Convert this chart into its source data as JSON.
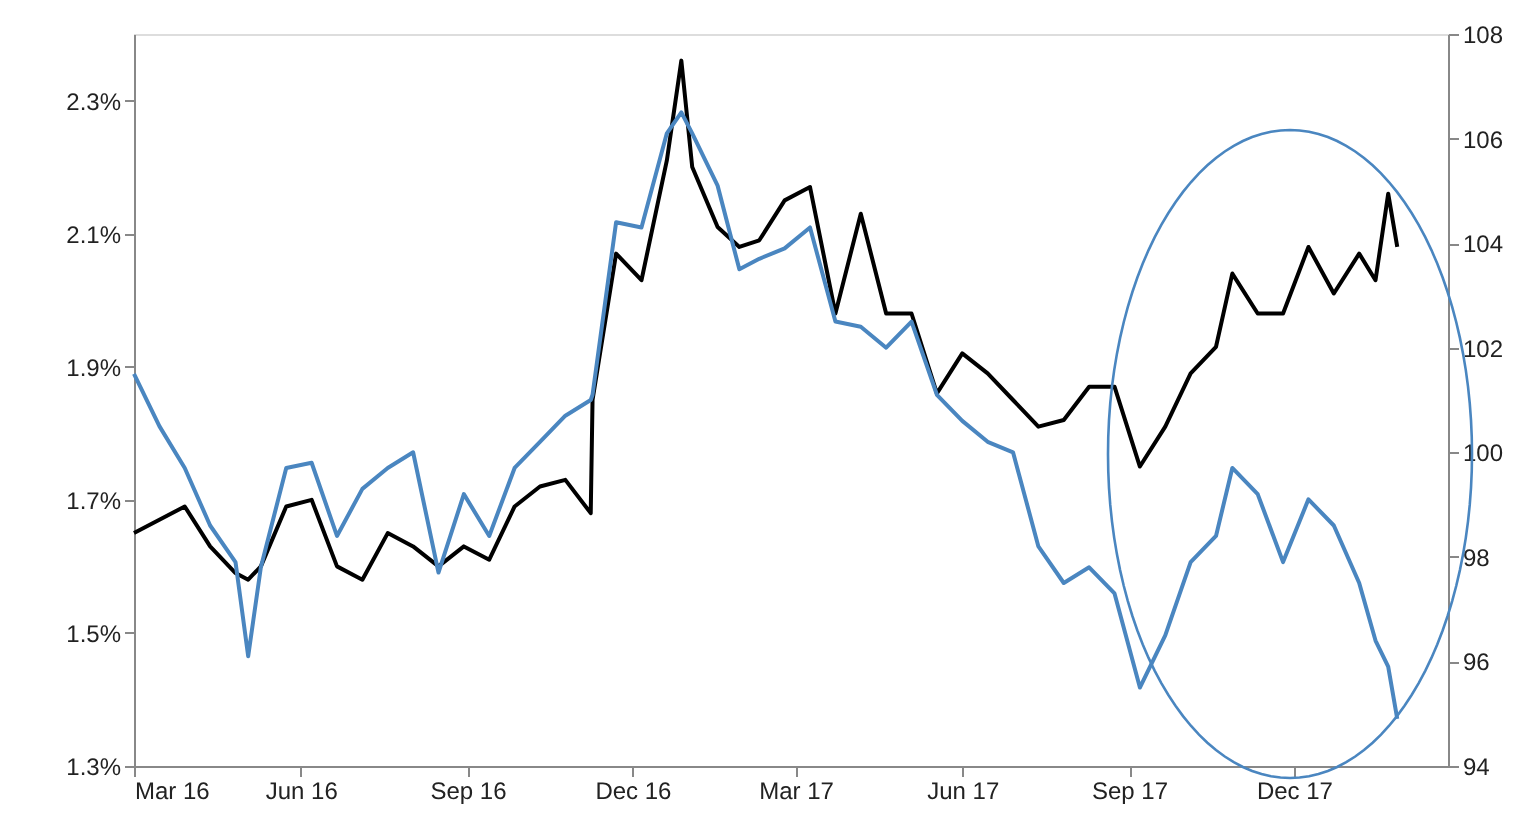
{
  "chart_data": {
    "type": "line",
    "x": [
      "2016-03-01",
      "2016-03-15",
      "2016-03-29",
      "2016-04-12",
      "2016-04-26",
      "2016-05-03",
      "2016-05-10",
      "2016-05-24",
      "2016-06-07",
      "2016-06-21",
      "2016-07-05",
      "2016-07-19",
      "2016-08-02",
      "2016-08-16",
      "2016-08-30",
      "2016-09-13",
      "2016-09-27",
      "2016-10-11",
      "2016-10-25",
      "2016-11-08",
      "2016-11-09",
      "2016-11-22",
      "2016-12-06",
      "2016-12-20",
      "2016-12-28",
      "2017-01-03",
      "2017-01-17",
      "2017-01-29",
      "2017-02-09",
      "2017-02-23",
      "2017-03-09",
      "2017-03-23",
      "2017-04-06",
      "2017-04-20",
      "2017-05-04",
      "2017-05-18",
      "2017-06-01",
      "2017-06-15",
      "2017-06-29",
      "2017-07-13",
      "2017-07-27",
      "2017-08-10",
      "2017-08-24",
      "2017-09-07",
      "2017-09-21",
      "2017-10-05",
      "2017-10-19",
      "2017-10-28",
      "2017-11-11",
      "2017-11-25",
      "2017-12-09",
      "2017-12-23",
      "2018-01-06",
      "2018-01-15",
      "2018-01-22",
      "2018-01-27"
    ],
    "series": [
      {
        "color": "#000000",
        "axis": "y",
        "values": [
          1.65,
          1.67,
          1.69,
          1.63,
          1.59,
          1.58,
          1.6,
          1.69,
          1.7,
          1.6,
          1.58,
          1.65,
          1.63,
          1.6,
          1.63,
          1.61,
          1.69,
          1.72,
          1.73,
          1.68,
          1.85,
          2.07,
          2.03,
          2.21,
          2.36,
          2.2,
          2.11,
          2.08,
          2.09,
          2.15,
          2.17,
          1.98,
          2.13,
          1.98,
          1.98,
          1.86,
          1.92,
          1.89,
          1.85,
          1.81,
          1.82,
          1.87,
          1.87,
          1.75,
          1.81,
          1.89,
          1.93,
          2.04,
          1.98,
          1.98,
          2.08,
          2.01,
          2.07,
          2.03,
          2.16,
          2.08
        ]
      },
      {
        "color": "#4a86c0",
        "axis": "y2",
        "values": [
          101.5,
          100.5,
          99.7,
          98.6,
          97.9,
          96.1,
          97.8,
          99.7,
          99.8,
          98.4,
          99.3,
          99.7,
          100.0,
          97.7,
          99.2,
          98.4,
          99.7,
          100.2,
          100.7,
          101.0,
          101.1,
          104.4,
          104.3,
          106.1,
          106.5,
          106.1,
          105.1,
          103.5,
          103.7,
          103.9,
          104.3,
          102.5,
          102.4,
          102.0,
          102.5,
          101.1,
          100.6,
          100.2,
          100.0,
          98.2,
          97.5,
          97.8,
          97.3,
          95.5,
          96.5,
          97.9,
          98.4,
          99.7,
          99.2,
          97.9,
          99.1,
          98.6,
          97.5,
          96.4,
          95.9,
          94.9
        ]
      }
    ],
    "xlim": [
      "2016-03-01",
      "2018-02-24"
    ],
    "xticks": [
      {
        "value": "2016-03-01",
        "label": "Mar 16"
      },
      {
        "value": "2016-06-01",
        "label": "Jun 16"
      },
      {
        "value": "2016-09-01",
        "label": "Sep 16"
      },
      {
        "value": "2016-12-01",
        "label": "Dec 16"
      },
      {
        "value": "2017-03-01",
        "label": "Mar 17"
      },
      {
        "value": "2017-06-01",
        "label": "Jun 17"
      },
      {
        "value": "2017-09-01",
        "label": "Sep 17"
      },
      {
        "value": "2017-12-01",
        "label": "Dec 17"
      }
    ],
    "ylim": [
      1.3,
      2.4
    ],
    "yticks": [
      {
        "value": 1.3,
        "label": "1.3%"
      },
      {
        "value": 1.5,
        "label": "1.5%"
      },
      {
        "value": 1.7,
        "label": "1.7%"
      },
      {
        "value": 1.9,
        "label": "1.9%"
      },
      {
        "value": 2.1,
        "label": "2.1%"
      },
      {
        "value": 2.3,
        "label": "2.3%"
      }
    ],
    "y2lim": [
      94,
      108
    ],
    "y2ticks": [
      94,
      96,
      98,
      100,
      102,
      104,
      106,
      108
    ],
    "grid": false,
    "legend": false,
    "marker": "none",
    "line_style": "solid"
  }
}
